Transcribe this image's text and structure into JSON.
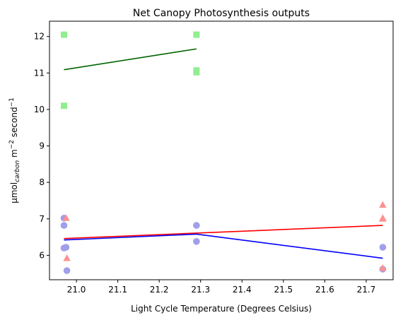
{
  "chart_data": {
    "type": "scatter",
    "title": "Net Canopy Photosynthesis outputs",
    "xlabel": "Light Cycle Temperature (Degrees Celsius)",
    "ylabel": {
      "unit": "μmol",
      "unit_sub": "carbon",
      "m": " m",
      "m_exp": "−2",
      "s": " second",
      "s_exp": "−1"
    },
    "xlim": [
      20.935,
      21.765
    ],
    "ylim": [
      5.33,
      12.42
    ],
    "xticks": [
      21.0,
      21.1,
      21.2,
      21.3,
      21.4,
      21.5,
      21.6,
      21.7
    ],
    "xtick_labels": [
      "21.0",
      "21.1",
      "21.2",
      "21.3",
      "21.4",
      "21.5",
      "21.6",
      "21.7"
    ],
    "yticks": [
      6,
      7,
      8,
      9,
      10,
      11,
      12
    ],
    "ytick_labels": [
      "6",
      "7",
      "8",
      "9",
      "10",
      "11",
      "12"
    ],
    "grid": false,
    "series": [
      {
        "marker": "square",
        "color": "#90ee90",
        "points": [
          [
            20.97,
            12.05
          ],
          [
            20.97,
            10.1
          ],
          [
            21.29,
            12.05
          ],
          [
            21.29,
            11.07
          ],
          [
            21.29,
            11.02
          ]
        ]
      },
      {
        "marker": "circle",
        "color": "#9f9fea",
        "points": [
          [
            20.97,
            7.02
          ],
          [
            20.97,
            6.82
          ],
          [
            20.97,
            6.2
          ],
          [
            20.975,
            6.22
          ],
          [
            20.977,
            5.58
          ],
          [
            21.29,
            6.82
          ],
          [
            21.29,
            6.38
          ],
          [
            21.74,
            6.22
          ],
          [
            21.74,
            5.62
          ]
        ]
      },
      {
        "marker": "triangle",
        "color": "#ff9090",
        "points": [
          [
            20.975,
            7.02
          ],
          [
            20.977,
            5.92
          ],
          [
            21.74,
            7.38
          ],
          [
            21.74,
            7.02
          ],
          [
            21.74,
            7.0
          ],
          [
            21.74,
            5.65
          ]
        ]
      }
    ],
    "lines": [
      {
        "color": "#006400",
        "points": [
          [
            20.97,
            11.09
          ],
          [
            21.29,
            11.66
          ]
        ]
      },
      {
        "color": "#ff0000",
        "points": [
          [
            20.97,
            6.46
          ],
          [
            21.74,
            6.82
          ]
        ]
      },
      {
        "color": "#0000ff",
        "points": [
          [
            20.97,
            6.42
          ],
          [
            21.29,
            6.58
          ],
          [
            21.74,
            5.92
          ]
        ]
      }
    ]
  }
}
